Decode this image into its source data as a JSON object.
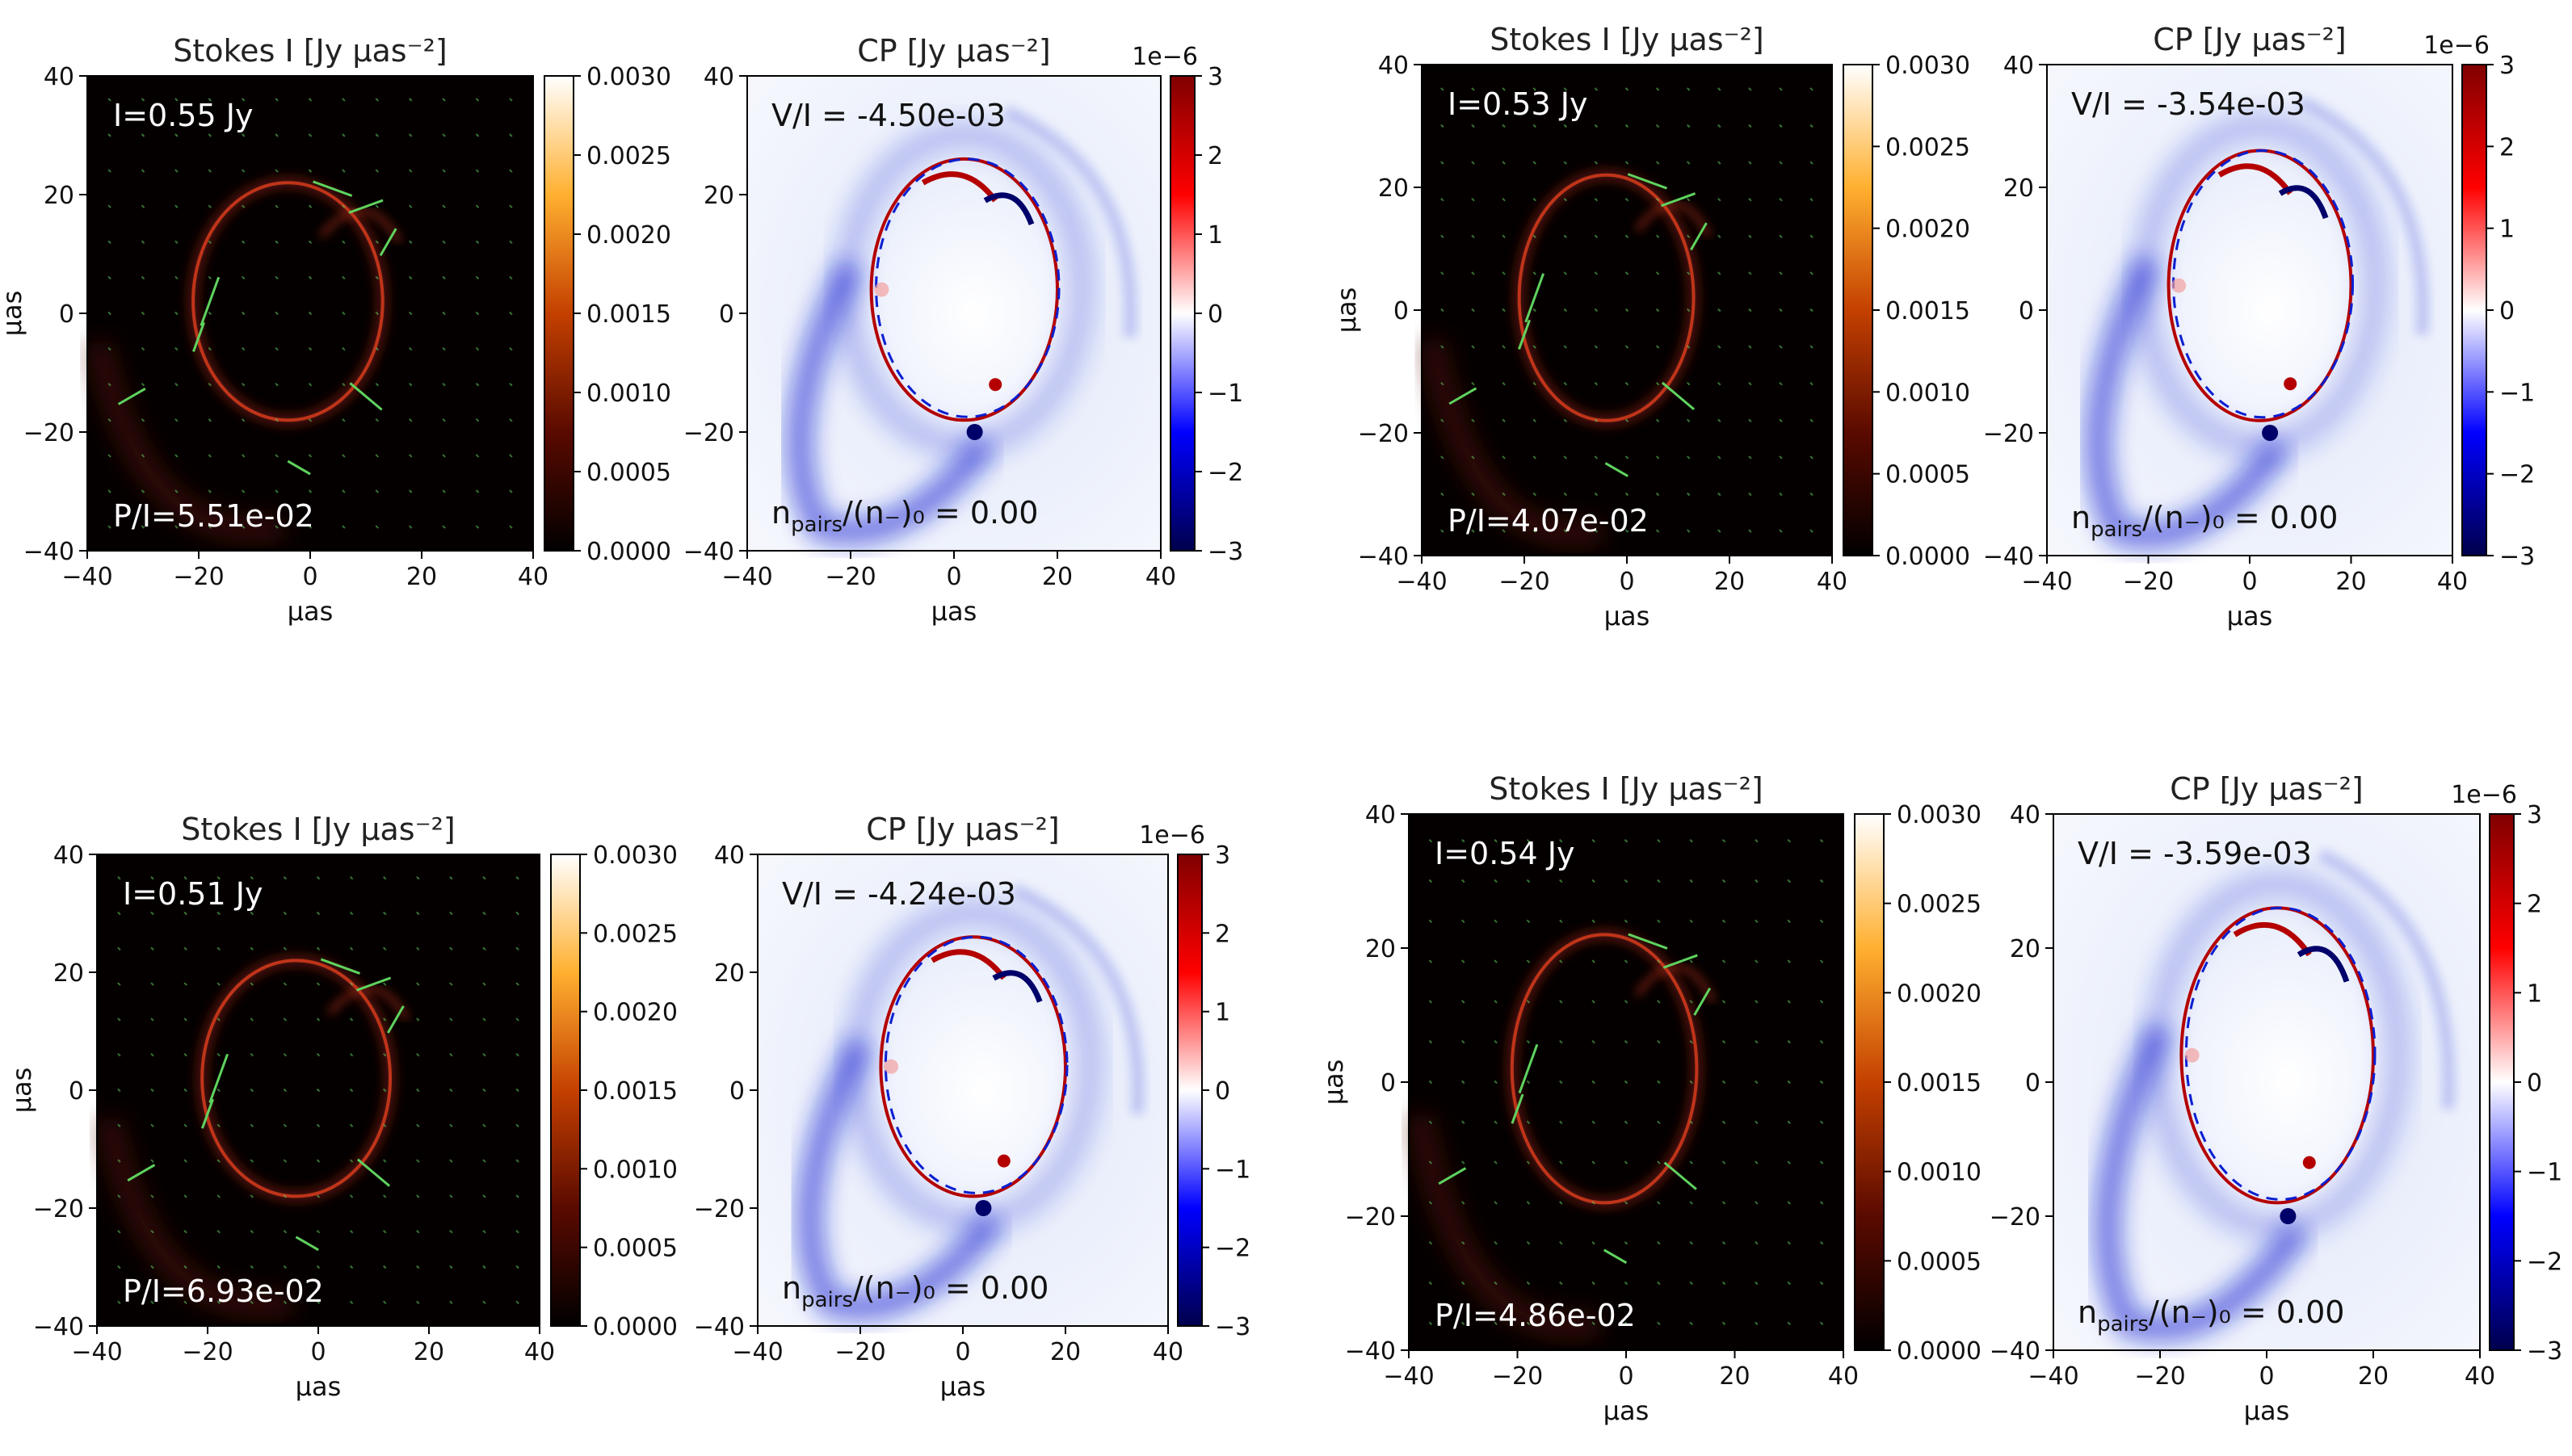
{
  "figure": {
    "stokes_title": "Stokes I [Jy μas⁻²]",
    "cp_title": "CP [Jy μas⁻²]",
    "axis_label": "μas",
    "tick_labels": [
      "−40",
      "−20",
      "0",
      "20",
      "40"
    ],
    "stokes_cbar_ticks": [
      "0.0000",
      "0.0005",
      "0.0010",
      "0.0015",
      "0.0020",
      "0.0025",
      "0.0030"
    ],
    "cp_cbar_ticks": [
      "−3",
      "−2",
      "−1",
      "0",
      "1",
      "2",
      "3"
    ],
    "cp_cbar_scale": "1e−6",
    "pairs_label": "n_pairs/(n₋)₀ = 0.00"
  },
  "chart_data": [
    {
      "type": "heatmap",
      "panel": "top-left",
      "stokes": {
        "title": "Stokes I [Jy μas⁻²]",
        "flux": "I=0.55 Jy",
        "linear_pol": "P/I=5.51e-02",
        "xlim": [
          -40,
          40
        ],
        "ylim": [
          -40,
          40
        ],
        "clim": [
          0.0,
          0.003
        ],
        "colormap": "gist_heat",
        "xlabel": "μas",
        "ylabel": "μas"
      },
      "cp": {
        "title": "CP [Jy μas⁻²]",
        "circular_pol": "V/I = -4.50e-03",
        "pairs": "n_pairs/(n₋)₀ = 0.00",
        "xlim": [
          -40,
          40
        ],
        "ylim": [
          -40,
          40
        ],
        "clim": [
          -3e-06,
          3e-06
        ],
        "colormap": "seismic",
        "xlabel": "μas"
      }
    },
    {
      "type": "heatmap",
      "panel": "top-right",
      "stokes": {
        "title": "Stokes I [Jy μas⁻²]",
        "flux": "I=0.53 Jy",
        "linear_pol": "P/I=4.07e-02",
        "xlim": [
          -40,
          40
        ],
        "ylim": [
          -40,
          40
        ],
        "clim": [
          0.0,
          0.003
        ],
        "colormap": "gist_heat",
        "xlabel": "μas",
        "ylabel": "μas"
      },
      "cp": {
        "title": "CP [Jy μas⁻²]",
        "circular_pol": "V/I = -3.54e-03",
        "pairs": "n_pairs/(n₋)₀ = 0.00",
        "xlim": [
          -40,
          40
        ],
        "ylim": [
          -40,
          40
        ],
        "clim": [
          -3e-06,
          3e-06
        ],
        "colormap": "seismic",
        "xlabel": "μas"
      }
    },
    {
      "type": "heatmap",
      "panel": "bottom-left",
      "stokes": {
        "title": "Stokes I [Jy μas⁻²]",
        "flux": "I=0.51 Jy",
        "linear_pol": "P/I=6.93e-02",
        "xlim": [
          -40,
          40
        ],
        "ylim": [
          -40,
          40
        ],
        "clim": [
          0.0,
          0.003
        ],
        "colormap": "gist_heat",
        "xlabel": "μas",
        "ylabel": "μas"
      },
      "cp": {
        "title": "CP [Jy μas⁻²]",
        "circular_pol": "V/I = -4.24e-03",
        "pairs": "n_pairs/(n₋)₀ = 0.00",
        "xlim": [
          -40,
          40
        ],
        "ylim": [
          -40,
          40
        ],
        "clim": [
          -3e-06,
          3e-06
        ],
        "colormap": "seismic",
        "xlabel": "μas"
      }
    },
    {
      "type": "heatmap",
      "panel": "bottom-right",
      "stokes": {
        "title": "Stokes I [Jy μas⁻²]",
        "flux": "I=0.54 Jy",
        "linear_pol": "P/I=4.86e-02",
        "xlim": [
          -40,
          40
        ],
        "ylim": [
          -40,
          40
        ],
        "clim": [
          0.0,
          0.003
        ],
        "colormap": "gist_heat",
        "xlabel": "μas",
        "ylabel": "μas"
      },
      "cp": {
        "title": "CP [Jy μas⁻²]",
        "circular_pol": "V/I = -3.59e-03",
        "pairs": "n_pairs/(n₋)₀ = 0.00",
        "xlim": [
          -40,
          40
        ],
        "ylim": [
          -40,
          40
        ],
        "clim": [
          -3e-06,
          3e-06
        ],
        "colormap": "seismic",
        "xlabel": "μas"
      }
    }
  ],
  "colors": {
    "stokes_bg": "#050000",
    "ring": "#c0341a",
    "ring_glow": "#5a1408",
    "evpa": "#5fd35f",
    "cp_red": "#b40000",
    "cp_blue": "#0a1ed0"
  }
}
